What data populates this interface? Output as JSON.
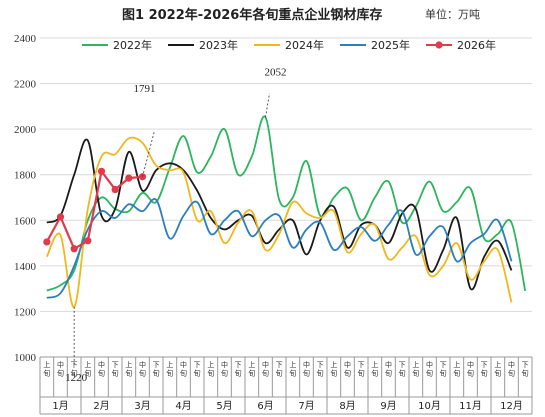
{
  "chart_data": {
    "type": "line",
    "title": "图1 2022年-2026年各旬重点企业钢材库存",
    "unit": "单位：万吨",
    "ylim": [
      1000,
      2400
    ],
    "yticks": [
      1000,
      1200,
      1400,
      1600,
      1800,
      2000,
      2200,
      2400
    ],
    "grid": true,
    "legend_position": "top",
    "months": [
      "1月",
      "2月",
      "3月",
      "4月",
      "5月",
      "6月",
      "7月",
      "8月",
      "9月",
      "10月",
      "11月",
      "12月"
    ],
    "dekads": [
      "上旬",
      "中旬",
      "下旬"
    ],
    "series": [
      {
        "name": "2022年",
        "color": "#2db55d",
        "marker": false,
        "values": [
          1292,
          1315,
          1380,
          1600,
          1700,
          1650,
          1640,
          1720,
          1680,
          1830,
          1970,
          1810,
          1880,
          2000,
          1800,
          1880,
          2052,
          1690,
          1700,
          1860,
          1620,
          1700,
          1740,
          1600,
          1700,
          1770,
          1590,
          1660,
          1770,
          1640,
          1680,
          1740,
          1520,
          1540,
          1590,
          1290
        ]
      },
      {
        "name": "2023年",
        "color": "#1a1a1a",
        "marker": false,
        "values": [
          1590,
          1620,
          1800,
          1950,
          1620,
          1650,
          1900,
          1730,
          1820,
          1850,
          1820,
          1730,
          1610,
          1560,
          1600,
          1620,
          1500,
          1560,
          1600,
          1450,
          1600,
          1660,
          1480,
          1580,
          1580,
          1500,
          1630,
          1650,
          1380,
          1470,
          1610,
          1300,
          1440,
          1510,
          1380
        ]
      },
      {
        "name": "2024年",
        "color": "#f0b81c",
        "marker": false,
        "values": [
          1440,
          1535,
          1220,
          1650,
          1880,
          1890,
          1960,
          1940,
          1840,
          1820,
          1810,
          1600,
          1640,
          1500,
          1590,
          1640,
          1470,
          1540,
          1680,
          1630,
          1610,
          1640,
          1460,
          1540,
          1580,
          1430,
          1480,
          1530,
          1360,
          1400,
          1500,
          1340,
          1420,
          1470,
          1240
        ]
      },
      {
        "name": "2025年",
        "color": "#2b7fbf",
        "marker": false,
        "values": [
          1260,
          1280,
          1400,
          1560,
          1640,
          1610,
          1670,
          1640,
          1690,
          1520,
          1620,
          1680,
          1540,
          1600,
          1640,
          1530,
          1600,
          1620,
          1480,
          1560,
          1590,
          1470,
          1530,
          1570,
          1510,
          1580,
          1640,
          1450,
          1530,
          1570,
          1420,
          1500,
          1540,
          1600,
          1420
        ]
      },
      {
        "name": "2026年",
        "color": "#e03a4b",
        "marker": true,
        "values": [
          1505,
          1615,
          1475,
          1510,
          1815,
          1735,
          1785,
          1791
        ]
      }
    ],
    "annotations": [
      {
        "label": "1791",
        "series": "2026年",
        "index": 7
      },
      {
        "label": "2052",
        "series": "2022年",
        "index": 16
      },
      {
        "label": "1220",
        "series": "2024年",
        "index": 2
      }
    ]
  }
}
